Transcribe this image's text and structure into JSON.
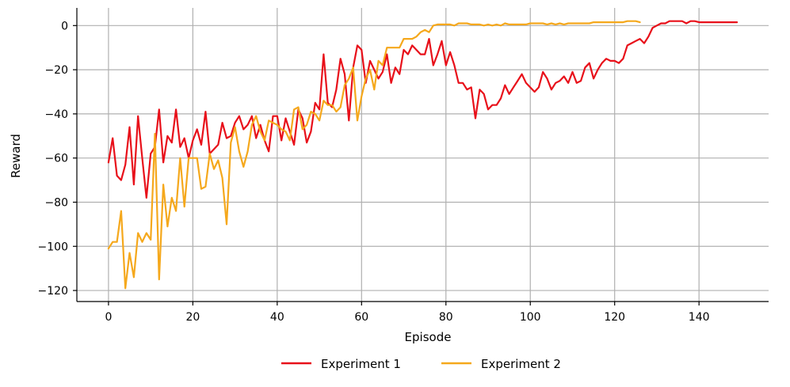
{
  "chart_data": {
    "type": "line",
    "title": "",
    "xlabel": "Episode",
    "ylabel": "Reward",
    "xlim": [
      -7.5,
      156.5
    ],
    "ylim": [
      -125,
      8
    ],
    "xticks": [
      0,
      20,
      40,
      60,
      80,
      100,
      120,
      140
    ],
    "yticks": [
      0,
      -20,
      -40,
      -60,
      -80,
      -100,
      -120
    ],
    "grid": true,
    "legend_placement": "bottom-center",
    "series": [
      {
        "name": "Experiment 1",
        "color": "#e8101a",
        "x": [
          0,
          1,
          2,
          3,
          4,
          5,
          6,
          7,
          8,
          9,
          10,
          11,
          12,
          13,
          14,
          15,
          16,
          17,
          18,
          19,
          20,
          21,
          22,
          23,
          24,
          25,
          26,
          27,
          28,
          29,
          30,
          31,
          32,
          33,
          34,
          35,
          36,
          37,
          38,
          39,
          40,
          41,
          42,
          43,
          44,
          45,
          46,
          47,
          48,
          49,
          50,
          51,
          52,
          53,
          54,
          55,
          56,
          57,
          58,
          59,
          60,
          61,
          62,
          63,
          64,
          65,
          66,
          67,
          68,
          69,
          70,
          71,
          72,
          73,
          74,
          75,
          76,
          77,
          78,
          79,
          80,
          81,
          82,
          83,
          84,
          85,
          86,
          87,
          88,
          89,
          90,
          91,
          92,
          93,
          94,
          95,
          96,
          97,
          98,
          99,
          100,
          101,
          102,
          103,
          104,
          105,
          106,
          107,
          108,
          109,
          110,
          111,
          112,
          113,
          114,
          115,
          116,
          117,
          118,
          119,
          120,
          121,
          122,
          123,
          124,
          125,
          126,
          127,
          128,
          129,
          130,
          131,
          132,
          133,
          134,
          135,
          136,
          137,
          138,
          139,
          140,
          141,
          142,
          143,
          144,
          145,
          146,
          147,
          148,
          149
        ],
        "y": [
          -62,
          -51,
          -68,
          -70,
          -63,
          -46,
          -72,
          -41,
          -60,
          -78,
          -58,
          -55,
          -38,
          -62,
          -50,
          -53,
          -38,
          -55,
          -51,
          -60,
          -52,
          -47,
          -54,
          -39,
          -58,
          -56,
          -54,
          -44,
          -51,
          -50,
          -44,
          -41,
          -47,
          -45,
          -41,
          -51,
          -45,
          -52,
          -57,
          -41,
          -41,
          -52,
          -42,
          -48,
          -54,
          -38,
          -42,
          -53,
          -48,
          -35,
          -38,
          -13,
          -35,
          -37,
          -29,
          -15,
          -22,
          -43,
          -19,
          -9,
          -11,
          -26,
          -16,
          -20,
          -24,
          -21,
          -13,
          -26,
          -19,
          -22,
          -11,
          -13,
          -9,
          -11,
          -13,
          -13,
          -6,
          -18,
          -13,
          -7,
          -18,
          -12,
          -18,
          -26,
          -26,
          -29,
          -28,
          -42,
          -29,
          -31,
          -38,
          -36,
          -36,
          -33,
          -27,
          -31,
          -28,
          -25,
          -22,
          -26,
          -28,
          -30,
          -28,
          -21,
          -24,
          -29,
          -26,
          -25,
          -23,
          -26,
          -21,
          -26,
          -25,
          -19,
          -17,
          -24,
          -20,
          -17,
          -15,
          -16,
          -16,
          -17,
          -15,
          -9,
          -8,
          -7,
          -6,
          -8,
          -5,
          -1,
          0,
          1,
          1,
          2,
          2,
          2,
          2,
          1,
          2,
          2,
          1.5,
          1.5,
          1.5,
          1.5,
          1.5,
          1.5,
          1.5,
          1.5,
          1.5,
          1.5
        ]
      },
      {
        "name": "Experiment 2",
        "color": "#f5a81c",
        "x": [
          0,
          1,
          2,
          3,
          4,
          5,
          6,
          7,
          8,
          9,
          10,
          11,
          12,
          13,
          14,
          15,
          16,
          17,
          18,
          19,
          20,
          21,
          22,
          23,
          24,
          25,
          26,
          27,
          28,
          29,
          30,
          31,
          32,
          33,
          34,
          35,
          36,
          37,
          38,
          39,
          40,
          41,
          42,
          43,
          44,
          45,
          46,
          47,
          48,
          49,
          50,
          51,
          52,
          53,
          54,
          55,
          56,
          57,
          58,
          59,
          60,
          61,
          62,
          63,
          64,
          65,
          66,
          67,
          68,
          69,
          70,
          71,
          72,
          73,
          74,
          75,
          76,
          77,
          78,
          79,
          80,
          81,
          82,
          83,
          84,
          85,
          86,
          87,
          88,
          89,
          90,
          91,
          92,
          93,
          94,
          95,
          96,
          97,
          98,
          99,
          100,
          101,
          102,
          103,
          104,
          105,
          106,
          107,
          108,
          109,
          110,
          111,
          112,
          113,
          114,
          115,
          116,
          117,
          118,
          119,
          120,
          121,
          122,
          123,
          124,
          125,
          126
        ],
        "y": [
          -101,
          -98,
          -98,
          -84,
          -119,
          -103,
          -114,
          -94,
          -98,
          -94,
          -97,
          -49,
          -115,
          -72,
          -91,
          -78,
          -84,
          -60,
          -82,
          -60,
          -60,
          -60,
          -74,
          -73,
          -58,
          -65,
          -61,
          -69,
          -90,
          -53,
          -46,
          -57,
          -64,
          -57,
          -45,
          -41,
          -48,
          -52,
          -43,
          -44,
          -45,
          -47,
          -48,
          -52,
          -38,
          -37,
          -47,
          -45,
          -39,
          -40,
          -43,
          -34,
          -36,
          -36,
          -39,
          -37,
          -27,
          -24,
          -19,
          -43,
          -32,
          -24,
          -20,
          -29,
          -16,
          -18,
          -10,
          -10,
          -10,
          -10,
          -6,
          -6,
          -6,
          -5,
          -3,
          -2,
          -3,
          0,
          0.5,
          0.5,
          0.5,
          0.5,
          0,
          1,
          1,
          1,
          0.5,
          0.5,
          0.5,
          0,
          0.5,
          0,
          0.5,
          0,
          1,
          0.5,
          0.5,
          0.5,
          0.5,
          0.5,
          1,
          1,
          1,
          1,
          0.5,
          1,
          0.5,
          1,
          0.5,
          1,
          1,
          1,
          1,
          1,
          1,
          1.5,
          1.5,
          1.5,
          1.5,
          1.5,
          1.5,
          1.5,
          1.5,
          2,
          2,
          2,
          1.5
        ]
      }
    ]
  }
}
